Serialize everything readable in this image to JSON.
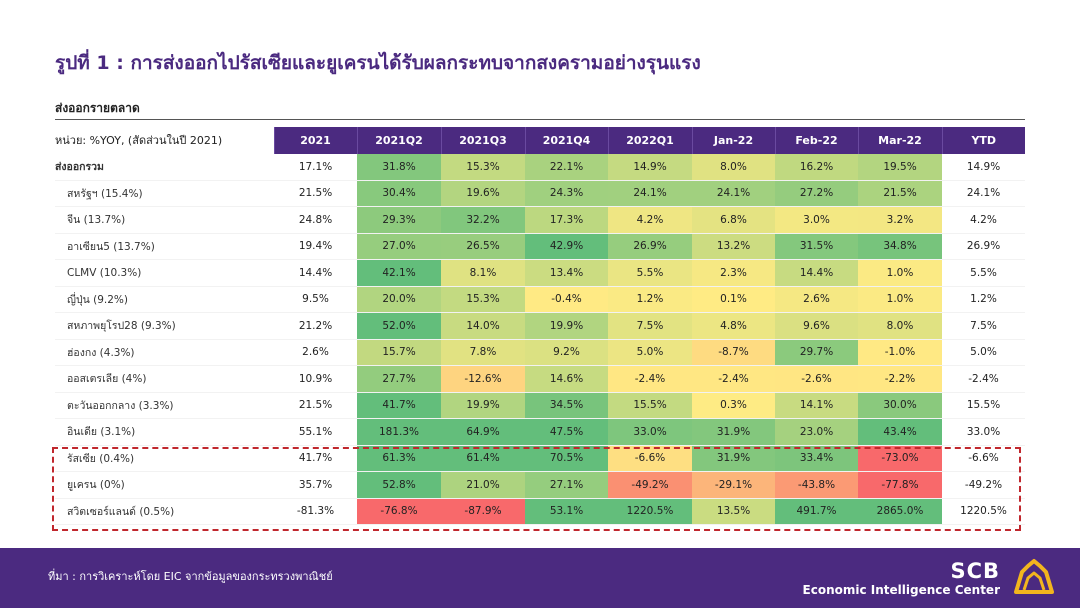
{
  "title": "รูปที่ 1 : การส่งออกไปรัสเซียและยูเครนได้รับผลกระทบจากสงครามอย่างรุนแรง",
  "subtitle": "ส่งออกรายตลาด",
  "table": {
    "unit_label": "หน่วย: %YOY, (สัดส่วนในปี 2021)",
    "columns": [
      "2021",
      "2021Q2",
      "2021Q3",
      "2021Q4",
      "2022Q1",
      "Jan-22",
      "Feb-22",
      "Mar-22",
      "YTD"
    ],
    "rows": [
      {
        "label": "ส่งออกรวม",
        "values": [
          "17.1%",
          "31.8%",
          "15.3%",
          "22.1%",
          "14.9%",
          "8.0%",
          "16.2%",
          "19.5%",
          "14.9%"
        ]
      },
      {
        "label": "สหรัฐฯ (15.4%)",
        "values": [
          "21.5%",
          "30.4%",
          "19.6%",
          "24.3%",
          "24.1%",
          "24.1%",
          "27.2%",
          "21.5%",
          "24.1%"
        ]
      },
      {
        "label": "จีน (13.7%)",
        "values": [
          "24.8%",
          "29.3%",
          "32.2%",
          "17.3%",
          "4.2%",
          "6.8%",
          "3.0%",
          "3.2%",
          "4.2%"
        ]
      },
      {
        "label": "อาเซียน5 (13.7%)",
        "values": [
          "19.4%",
          "27.0%",
          "26.5%",
          "42.9%",
          "26.9%",
          "13.2%",
          "31.5%",
          "34.8%",
          "26.9%"
        ]
      },
      {
        "label": "CLMV (10.3%)",
        "values": [
          "14.4%",
          "42.1%",
          "8.1%",
          "13.4%",
          "5.5%",
          "2.3%",
          "14.4%",
          "1.0%",
          "5.5%"
        ]
      },
      {
        "label": "ญี่ปุ่น (9.2%)",
        "values": [
          "9.5%",
          "20.0%",
          "15.3%",
          "-0.4%",
          "1.2%",
          "0.1%",
          "2.6%",
          "1.0%",
          "1.2%"
        ]
      },
      {
        "label": "สหภาพยุโรป28 (9.3%)",
        "values": [
          "21.2%",
          "52.0%",
          "14.0%",
          "19.9%",
          "7.5%",
          "4.8%",
          "9.6%",
          "8.0%",
          "7.5%"
        ]
      },
      {
        "label": "ฮ่องกง (4.3%)",
        "values": [
          "2.6%",
          "15.7%",
          "7.8%",
          "9.2%",
          "5.0%",
          "-8.7%",
          "29.7%",
          "-1.0%",
          "5.0%"
        ]
      },
      {
        "label": "ออสเตรเลีย (4%)",
        "values": [
          "10.9%",
          "27.7%",
          "-12.6%",
          "14.6%",
          "-2.4%",
          "-2.4%",
          "-2.6%",
          "-2.2%",
          "-2.4%"
        ]
      },
      {
        "label": "ตะวันออกกลาง (3.3%)",
        "values": [
          "21.5%",
          "41.7%",
          "19.9%",
          "34.5%",
          "15.5%",
          "0.3%",
          "14.1%",
          "30.0%",
          "15.5%"
        ]
      },
      {
        "label": "อินเดีย (3.1%)",
        "values": [
          "55.1%",
          "181.3%",
          "64.9%",
          "47.5%",
          "33.0%",
          "31.9%",
          "23.0%",
          "43.4%",
          "33.0%"
        ]
      },
      {
        "label": "รัสเซีย (0.4%)",
        "values": [
          "41.7%",
          "61.3%",
          "61.4%",
          "70.5%",
          "-6.6%",
          "31.9%",
          "33.4%",
          "-73.0%",
          "-6.6%"
        ]
      },
      {
        "label": "ยูเครน (0%)",
        "values": [
          "35.7%",
          "52.8%",
          "21.0%",
          "27.1%",
          "-49.2%",
          "-29.1%",
          "-43.8%",
          "-77.8%",
          "-49.2%"
        ]
      },
      {
        "label": "สวิตเซอร์แลนด์ (0.5%)",
        "values": [
          "-81.3%",
          "-76.8%",
          "-87.9%",
          "53.1%",
          "1220.5%",
          "13.5%",
          "491.7%",
          "2865.0%",
          "1220.5%"
        ]
      }
    ]
  },
  "footer": {
    "source": "ที่มา : การวิเคราะห์โดย EIC จากข้อมูลของกระทรวงพาณิชย์",
    "brand_name": "SCB",
    "brand_sub": "Economic Intelligence Center"
  },
  "colors": {
    "header_bg": "#4b2a80",
    "highlight_border": "#c0272d",
    "heat_green": "#63be7b",
    "heat_yellow": "#ffeb84",
    "heat_red": "#f8696b"
  }
}
